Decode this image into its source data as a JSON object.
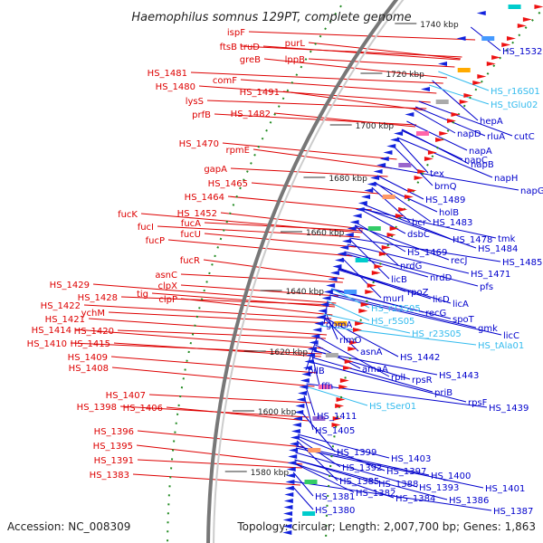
{
  "title": "Haemophilus somnus 129PT, complete genome",
  "accession": "Accession: NC_008309",
  "topology": "Topology: circular; Length: 2,007,700 bp; Genes: 1,863",
  "colors": {
    "left_label": "#dd0000",
    "right_label": "#0000cc",
    "rna_label": "#33bbee",
    "backbone": "#999999",
    "tick": "#228b22"
  },
  "scale_ticks": [
    "1740 kbp",
    "1720 kbp",
    "1700 kbp",
    "1680 kbp",
    "1660 kbp",
    "1640 kbp",
    "1620 kbp",
    "1600 kbp",
    "1580 kbp"
  ],
  "left_labels": [
    "ispF",
    "ftsB",
    "truD",
    "purL",
    "greB",
    "lppB",
    "HS_1481",
    "comF",
    "HS_1480",
    "HS_1491",
    "lysS",
    "prfB",
    "HS_1482",
    "HS_1470",
    "rpmE",
    "gapA",
    "HS_1465",
    "HS_1464",
    "HS_1452",
    "fucK",
    "fucA",
    "fucI",
    "fucU",
    "fucP",
    "fucR",
    "asnC",
    "clpX",
    "tig",
    "clpP",
    "HS_1429",
    "HS_1428",
    "ychM",
    "HS_1422",
    "HS_1421",
    "HS_1414",
    "HS_1420",
    "HS_1410",
    "HS_1415",
    "HS_1409",
    "HS_1408",
    "HS_1407",
    "HS_1398",
    "HS_1406",
    "HS_1396",
    "HS_1395",
    "HS_1391",
    "HS_1383"
  ],
  "right_labels": [
    "HS_1532",
    "rluA",
    "cutC",
    "hepA",
    "napD",
    "napA",
    "napB",
    "napH",
    "napG",
    "napC",
    "tex",
    "brnQ",
    "HS_1489",
    "holB",
    "bcr",
    "HS_1483",
    "dsbC",
    "tmk",
    "HS_1478",
    "HS_1484",
    "HS_1485",
    "HS_1469",
    "recJ",
    "nrdG",
    "nrdD",
    "HS_1471",
    "pfs",
    "licB",
    "rpoZ",
    "licD",
    "licA",
    "murI",
    "recG",
    "spoT",
    "gmk",
    "licC",
    "gpmA",
    "rimO",
    "asnA",
    "HS_1442",
    "amaA",
    "rpsR",
    "pilB",
    "rplI",
    "HS_1443",
    "ffh",
    "priB",
    "rpsF",
    "HS_1439",
    "HS_1411",
    "HS_1405",
    "HS_1399",
    "HS_1403",
    "HS_1392",
    "HS_1397",
    "HS_1385",
    "HS_1388",
    "HS_1400",
    "HS_1393",
    "HS_1401",
    "HS_1381",
    "HS_1382",
    "HS_1384",
    "HS_1386",
    "HS_1380",
    "HS_1387"
  ],
  "rna_labels": [
    "HS_r16S01",
    "HS_tGlu02",
    "HS_r23S05",
    "HS_r5S05",
    "HS_r23S05",
    "HS_tAla01",
    "HS_tSer01"
  ]
}
